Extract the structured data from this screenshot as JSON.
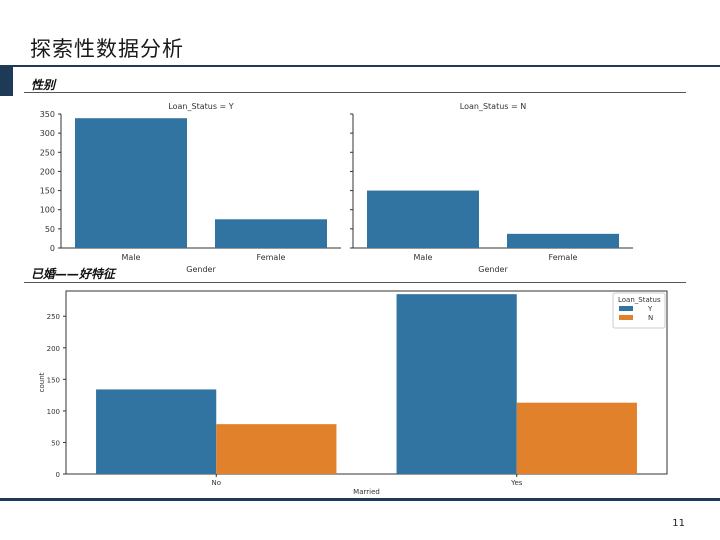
{
  "slide": {
    "title": "探索性数据分析",
    "section1_label": "性别",
    "section2_label": "已婚——好特征",
    "page_number": "11"
  },
  "colors": {
    "blue": "#3274a1",
    "orange": "#e1812c",
    "navy": "#1f3a56"
  },
  "chart_data": [
    {
      "type": "bar",
      "title": "Loan_Status = Y",
      "xlabel": "Gender",
      "ylabel": "",
      "categories": [
        "Male",
        "Female"
      ],
      "values": [
        339,
        75
      ],
      "ylim": [
        0,
        350
      ],
      "yticks": [
        0,
        50,
        100,
        150,
        200,
        250,
        300,
        350
      ],
      "grid": false
    },
    {
      "type": "bar",
      "title": "Loan_Status = N",
      "xlabel": "Gender",
      "ylabel": "",
      "categories": [
        "Male",
        "Female"
      ],
      "values": [
        150,
        37
      ],
      "ylim": [
        0,
        350
      ],
      "yticks": [
        0,
        50,
        100,
        150,
        200,
        250,
        300,
        350
      ],
      "grid": false
    },
    {
      "type": "bar",
      "title": "",
      "xlabel": "Married",
      "ylabel": "count",
      "categories": [
        "No",
        "Yes"
      ],
      "series": [
        {
          "name": "Y",
          "values": [
            134,
            285
          ]
        },
        {
          "name": "N",
          "values": [
            79,
            113
          ]
        }
      ],
      "legend_title": "Loan_Status",
      "legend_position": "top-right",
      "ylim": [
        0,
        290
      ],
      "yticks": [
        0,
        50,
        100,
        150,
        200,
        250
      ],
      "grid": false
    }
  ]
}
